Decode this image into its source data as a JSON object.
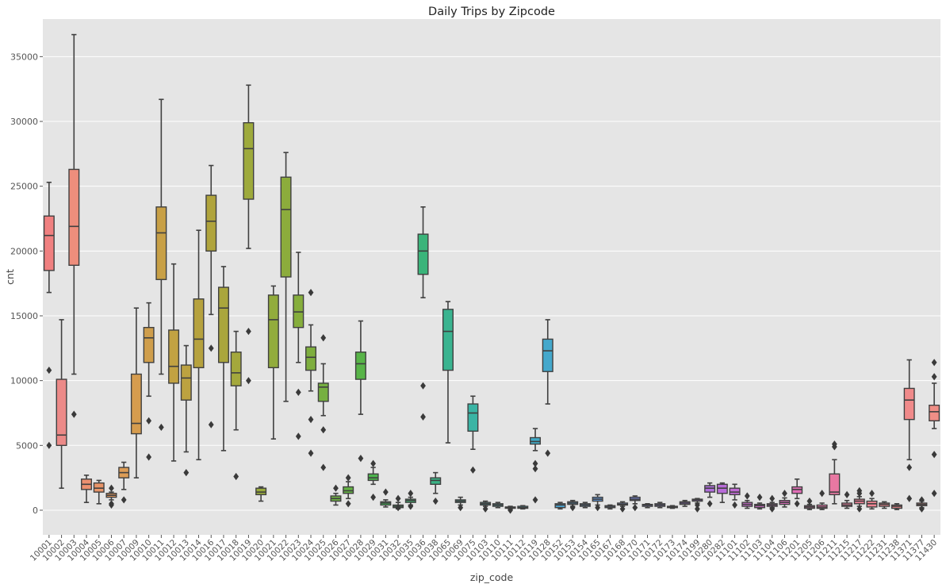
{
  "chart_data": {
    "type": "box",
    "title": "Daily Trips by Zipcode",
    "xlabel": "zip_code",
    "ylabel": "cnt",
    "ylim": [
      -1900,
      37900
    ],
    "yticks": [
      0,
      5000,
      10000,
      15000,
      20000,
      25000,
      30000,
      35000
    ],
    "grid": true,
    "background": "#e5e5e5",
    "categories": [
      "10001",
      "10002",
      "10003",
      "10004",
      "10005",
      "10006",
      "10007",
      "10009",
      "10010",
      "10011",
      "10012",
      "10013",
      "10014",
      "10016",
      "10017",
      "10018",
      "10019",
      "10020",
      "10021",
      "10022",
      "10023",
      "10024",
      "10025",
      "10026",
      "10027",
      "10028",
      "10029",
      "10031",
      "10032",
      "10035",
      "10036",
      "10038",
      "10065",
      "10069",
      "10075",
      "10103",
      "10110",
      "10111",
      "10112",
      "10119",
      "10128",
      "10152",
      "10153",
      "10154",
      "10165",
      "10167",
      "10168",
      "10170",
      "10171",
      "10172",
      "10173",
      "10174",
      "10199",
      "10280",
      "10282",
      "11101",
      "11102",
      "11103",
      "11104",
      "11106",
      "11201",
      "11205",
      "11206",
      "11211",
      "11215",
      "11217",
      "11222",
      "11231",
      "11238",
      "11371",
      "11377",
      "11430"
    ],
    "colors": [
      "#f08080",
      "#ec8a88",
      "#ee8e7c",
      "#ec9070",
      "#e89468",
      "#e2985e",
      "#dc9c56",
      "#d69c4e",
      "#cf9e4c",
      "#c8a046",
      "#c2a242",
      "#bca240",
      "#b6a23e",
      "#b0a43c",
      "#aaa63c",
      "#a4a83c",
      "#9eaa3c",
      "#98aa3c",
      "#92ac3c",
      "#8cac3c",
      "#86ae3c",
      "#7eae3e",
      "#76b040",
      "#6eb042",
      "#64b244",
      "#58b448",
      "#4cb44c",
      "#42b456",
      "#3eb462",
      "#3cb46e",
      "#3ab47a",
      "#3ab486",
      "#3ab490",
      "#3ab49a",
      "#3ab4a4",
      "#3ab2ac",
      "#3ab0b4",
      "#3caebc",
      "#3eacc0",
      "#40aac6",
      "#44a8cc",
      "#4aa4d2",
      "#50a2d6",
      "#589ed8",
      "#6098dc",
      "#6894e0",
      "#7090e2",
      "#7a8ae4",
      "#8284e6",
      "#8a80e6",
      "#947ae6",
      "#9e76e6",
      "#a672e2",
      "#b06edc",
      "#b86cd8",
      "#c06ad4",
      "#c86ace",
      "#d06ac8",
      "#d66ac2",
      "#dc6cbc",
      "#e06eb6",
      "#e470b0",
      "#e674a8",
      "#e878a2",
      "#ea7c9c",
      "#ec8096",
      "#ee8492",
      "#f0868e",
      "#f0888c",
      "#f08a8a",
      "#f08c88",
      "#f08e86"
    ],
    "boxes": [
      {
        "zip": "10001",
        "q1": 18500,
        "med": 21200,
        "q3": 22700,
        "whislo": 16800,
        "whishi": 25300,
        "fliers": [
          10800,
          5000
        ]
      },
      {
        "zip": "10002",
        "q1": 5000,
        "med": 5800,
        "q3": 10100,
        "whislo": 1700,
        "whishi": 14700,
        "fliers": []
      },
      {
        "zip": "10003",
        "q1": 18900,
        "med": 21900,
        "q3": 26300,
        "whislo": 10500,
        "whishi": 36700,
        "fliers": [
          7400
        ]
      },
      {
        "zip": "10004",
        "q1": 1600,
        "med": 2000,
        "q3": 2400,
        "whislo": 600,
        "whishi": 2700,
        "fliers": []
      },
      {
        "zip": "10005",
        "q1": 1400,
        "med": 1700,
        "q3": 2100,
        "whislo": 500,
        "whishi": 2300,
        "fliers": []
      },
      {
        "zip": "10006",
        "q1": 1000,
        "med": 1150,
        "q3": 1300,
        "whislo": 800,
        "whishi": 1400,
        "fliers": [
          1700,
          500,
          400
        ]
      },
      {
        "zip": "10007",
        "q1": 2500,
        "med": 2900,
        "q3": 3300,
        "whislo": 1600,
        "whishi": 3700,
        "fliers": [
          800
        ]
      },
      {
        "zip": "10009",
        "q1": 5900,
        "med": 6700,
        "q3": 10500,
        "whislo": 2500,
        "whishi": 15600,
        "fliers": []
      },
      {
        "zip": "10010",
        "q1": 11400,
        "med": 13300,
        "q3": 14100,
        "whislo": 8800,
        "whishi": 16000,
        "fliers": [
          6900,
          4100
        ]
      },
      {
        "zip": "10011",
        "q1": 17800,
        "med": 21400,
        "q3": 23400,
        "whislo": 10500,
        "whishi": 31700,
        "fliers": [
          6400
        ]
      },
      {
        "zip": "10012",
        "q1": 9800,
        "med": 11100,
        "q3": 13900,
        "whislo": 3800,
        "whishi": 19000,
        "fliers": []
      },
      {
        "zip": "10013",
        "q1": 8500,
        "med": 10200,
        "q3": 11200,
        "whislo": 4500,
        "whishi": 12700,
        "fliers": [
          2900
        ]
      },
      {
        "zip": "10014",
        "q1": 11000,
        "med": 13200,
        "q3": 16300,
        "whislo": 3900,
        "whishi": 21600,
        "fliers": []
      },
      {
        "zip": "10016",
        "q1": 20000,
        "med": 22300,
        "q3": 24300,
        "whislo": 15100,
        "whishi": 26600,
        "fliers": [
          12500,
          6600
        ]
      },
      {
        "zip": "10017",
        "q1": 11400,
        "med": 15600,
        "q3": 17200,
        "whislo": 4600,
        "whishi": 18800,
        "fliers": []
      },
      {
        "zip": "10018",
        "q1": 9600,
        "med": 10600,
        "q3": 12200,
        "whislo": 6200,
        "whishi": 13800,
        "fliers": [
          2600
        ]
      },
      {
        "zip": "10019",
        "q1": 24000,
        "med": 27900,
        "q3": 29900,
        "whislo": 20200,
        "whishi": 32800,
        "fliers": [
          13800,
          10000
        ]
      },
      {
        "zip": "10020",
        "q1": 1200,
        "med": 1400,
        "q3": 1700,
        "whislo": 700,
        "whishi": 1800,
        "fliers": []
      },
      {
        "zip": "10021",
        "q1": 11000,
        "med": 14700,
        "q3": 16600,
        "whislo": 5500,
        "whishi": 17300,
        "fliers": []
      },
      {
        "zip": "10022",
        "q1": 18000,
        "med": 23200,
        "q3": 25700,
        "whislo": 8400,
        "whishi": 27600,
        "fliers": []
      },
      {
        "zip": "10023",
        "q1": 14100,
        "med": 15300,
        "q3": 16600,
        "whislo": 11400,
        "whishi": 19900,
        "fliers": [
          9100,
          5700
        ]
      },
      {
        "zip": "10024",
        "q1": 10800,
        "med": 11800,
        "q3": 12600,
        "whislo": 9200,
        "whishi": 14300,
        "fliers": [
          16800,
          7000,
          4400
        ]
      },
      {
        "zip": "10025",
        "q1": 8400,
        "med": 9500,
        "q3": 9800,
        "whislo": 7300,
        "whishi": 11300,
        "fliers": [
          13300,
          6200,
          3300
        ]
      },
      {
        "zip": "10026",
        "q1": 700,
        "med": 900,
        "q3": 1100,
        "whislo": 400,
        "whishi": 1300,
        "fliers": [
          1700
        ]
      },
      {
        "zip": "10027",
        "q1": 1300,
        "med": 1500,
        "q3": 1800,
        "whislo": 900,
        "whishi": 2200,
        "fliers": [
          2500,
          500
        ]
      },
      {
        "zip": "10028",
        "q1": 10100,
        "med": 11300,
        "q3": 12200,
        "whislo": 7400,
        "whishi": 14600,
        "fliers": [
          4000
        ]
      },
      {
        "zip": "10029",
        "q1": 2300,
        "med": 2500,
        "q3": 2800,
        "whislo": 2000,
        "whishi": 3300,
        "fliers": [
          3600,
          1000
        ]
      },
      {
        "zip": "10031",
        "q1": 400,
        "med": 550,
        "q3": 650,
        "whislo": 250,
        "whishi": 800,
        "fliers": [
          1400
        ]
      },
      {
        "zip": "10032",
        "q1": 200,
        "med": 300,
        "q3": 400,
        "whislo": 100,
        "whishi": 600,
        "fliers": [
          900,
          200
        ]
      },
      {
        "zip": "10035",
        "q1": 600,
        "med": 750,
        "q3": 850,
        "whislo": 400,
        "whishi": 1000,
        "fliers": [
          1300,
          300
        ]
      },
      {
        "zip": "10036",
        "q1": 18200,
        "med": 20000,
        "q3": 21300,
        "whislo": 16400,
        "whishi": 23400,
        "fliers": [
          9600,
          7200
        ]
      },
      {
        "zip": "10038",
        "q1": 2000,
        "med": 2300,
        "q3": 2500,
        "whislo": 1300,
        "whishi": 2900,
        "fliers": [
          700
        ]
      },
      {
        "zip": "10065",
        "q1": 10800,
        "med": 13800,
        "q3": 15500,
        "whislo": 5200,
        "whishi": 16100,
        "fliers": []
      },
      {
        "zip": "10069",
        "q1": 600,
        "med": 700,
        "q3": 800,
        "whislo": 400,
        "whishi": 1000,
        "fliers": [
          200
        ]
      },
      {
        "zip": "10075",
        "q1": 6100,
        "med": 7500,
        "q3": 8200,
        "whislo": 4700,
        "whishi": 8800,
        "fliers": [
          3100
        ]
      },
      {
        "zip": "10103",
        "q1": 400,
        "med": 500,
        "q3": 600,
        "whislo": 300,
        "whishi": 700,
        "fliers": [
          100
        ]
      },
      {
        "zip": "10110",
        "q1": 300,
        "med": 400,
        "q3": 500,
        "whislo": 200,
        "whishi": 600,
        "fliers": []
      },
      {
        "zip": "10111",
        "q1": 150,
        "med": 200,
        "q3": 250,
        "whislo": 100,
        "whishi": 300,
        "fliers": [
          0
        ]
      },
      {
        "zip": "10112",
        "q1": 150,
        "med": 200,
        "q3": 300,
        "whislo": 100,
        "whishi": 350,
        "fliers": []
      },
      {
        "zip": "10119",
        "q1": 5100,
        "med": 5300,
        "q3": 5600,
        "whislo": 4600,
        "whishi": 6300,
        "fliers": [
          3600,
          3200,
          800
        ]
      },
      {
        "zip": "10128",
        "q1": 10700,
        "med": 12300,
        "q3": 13200,
        "whislo": 8200,
        "whishi": 14700,
        "fliers": [
          4400
        ]
      },
      {
        "zip": "10152",
        "q1": 200,
        "med": 400,
        "q3": 500,
        "whislo": 100,
        "whishi": 600,
        "fliers": []
      },
      {
        "zip": "10153",
        "q1": 450,
        "med": 550,
        "q3": 650,
        "whislo": 300,
        "whishi": 750,
        "fliers": [
          200
        ]
      },
      {
        "zip": "10154",
        "q1": 300,
        "med": 400,
        "q3": 500,
        "whislo": 200,
        "whishi": 600,
        "fliers": []
      },
      {
        "zip": "10165",
        "q1": 700,
        "med": 850,
        "q3": 1000,
        "whislo": 400,
        "whishi": 1200,
        "fliers": [
          200
        ]
      },
      {
        "zip": "10167",
        "q1": 200,
        "med": 300,
        "q3": 350,
        "whislo": 100,
        "whishi": 400,
        "fliers": []
      },
      {
        "zip": "10168",
        "q1": 400,
        "med": 450,
        "q3": 550,
        "whislo": 300,
        "whishi": 650,
        "fliers": [
          100
        ]
      },
      {
        "zip": "10170",
        "q1": 750,
        "med": 850,
        "q3": 1000,
        "whislo": 500,
        "whishi": 1100,
        "fliers": [
          200
        ]
      },
      {
        "zip": "10171",
        "q1": 300,
        "med": 400,
        "q3": 450,
        "whislo": 200,
        "whishi": 500,
        "fliers": []
      },
      {
        "zip": "10172",
        "q1": 300,
        "med": 400,
        "q3": 500,
        "whislo": 200,
        "whishi": 600,
        "fliers": []
      },
      {
        "zip": "10173",
        "q1": 200,
        "med": 250,
        "q3": 300,
        "whislo": 150,
        "whishi": 350,
        "fliers": []
      },
      {
        "zip": "10174",
        "q1": 450,
        "med": 550,
        "q3": 650,
        "whislo": 300,
        "whishi": 750,
        "fliers": []
      },
      {
        "zip": "10199",
        "q1": 700,
        "med": 800,
        "q3": 850,
        "whislo": 550,
        "whishi": 900,
        "fliers": [
          400,
          100
        ]
      },
      {
        "zip": "10280",
        "q1": 1400,
        "med": 1700,
        "q3": 1900,
        "whislo": 1000,
        "whishi": 2100,
        "fliers": [
          500
        ]
      },
      {
        "zip": "10282",
        "q1": 1300,
        "med": 1700,
        "q3": 2000,
        "whislo": 600,
        "whishi": 2100,
        "fliers": []
      },
      {
        "zip": "11101",
        "q1": 1200,
        "med": 1400,
        "q3": 1700,
        "whislo": 800,
        "whishi": 2000,
        "fliers": [
          400
        ]
      },
      {
        "zip": "11102",
        "q1": 300,
        "med": 450,
        "q3": 600,
        "whislo": 150,
        "whishi": 750,
        "fliers": [
          1100
        ]
      },
      {
        "zip": "11103",
        "q1": 200,
        "med": 350,
        "q3": 450,
        "whislo": 100,
        "whishi": 550,
        "fliers": [
          1000
        ]
      },
      {
        "zip": "11104",
        "q1": 300,
        "med": 400,
        "q3": 500,
        "whislo": 200,
        "whishi": 600,
        "fliers": [
          900,
          100
        ]
      },
      {
        "zip": "11106",
        "q1": 450,
        "med": 600,
        "q3": 750,
        "whislo": 250,
        "whishi": 950,
        "fliers": [
          1300
        ]
      },
      {
        "zip": "11201",
        "q1": 1300,
        "med": 1600,
        "q3": 1800,
        "whislo": 900,
        "whishi": 2400,
        "fliers": [
          500
        ]
      },
      {
        "zip": "11205",
        "q1": 150,
        "med": 250,
        "q3": 350,
        "whislo": 50,
        "whishi": 450,
        "fliers": [
          700
        ]
      },
      {
        "zip": "11206",
        "q1": 150,
        "med": 250,
        "q3": 400,
        "whislo": 50,
        "whishi": 550,
        "fliers": [
          1300
        ]
      },
      {
        "zip": "11211",
        "q1": 1200,
        "med": 1400,
        "q3": 2800,
        "whislo": 500,
        "whishi": 3900,
        "fliers": [
          5100,
          4900
        ]
      },
      {
        "zip": "11215",
        "q1": 300,
        "med": 400,
        "q3": 550,
        "whislo": 150,
        "whishi": 750,
        "fliers": [
          1200
        ]
      },
      {
        "zip": "11217",
        "q1": 500,
        "med": 700,
        "q3": 850,
        "whislo": 300,
        "whishi": 1050,
        "fliers": [
          1500,
          1300,
          100
        ]
      },
      {
        "zip": "11222",
        "q1": 250,
        "med": 500,
        "q3": 700,
        "whislo": 100,
        "whishi": 900,
        "fliers": [
          1300
        ]
      },
      {
        "zip": "11231",
        "q1": 300,
        "med": 450,
        "q3": 550,
        "whislo": 150,
        "whishi": 650,
        "fliers": []
      },
      {
        "zip": "11238",
        "q1": 150,
        "med": 300,
        "q3": 400,
        "whislo": 50,
        "whishi": 500,
        "fliers": []
      },
      {
        "zip": "11371",
        "q1": 7000,
        "med": 8500,
        "q3": 9400,
        "whislo": 3900,
        "whishi": 11600,
        "fliers": [
          3300,
          900
        ]
      },
      {
        "zip": "11377",
        "q1": 350,
        "med": 450,
        "q3": 550,
        "whislo": 200,
        "whishi": 700,
        "fliers": [
          800,
          100
        ]
      },
      {
        "zip": "11430",
        "q1": 6900,
        "med": 7600,
        "q3": 8100,
        "whislo": 6300,
        "whishi": 9800,
        "fliers": [
          11400,
          10300,
          4300,
          1300
        ]
      }
    ]
  }
}
